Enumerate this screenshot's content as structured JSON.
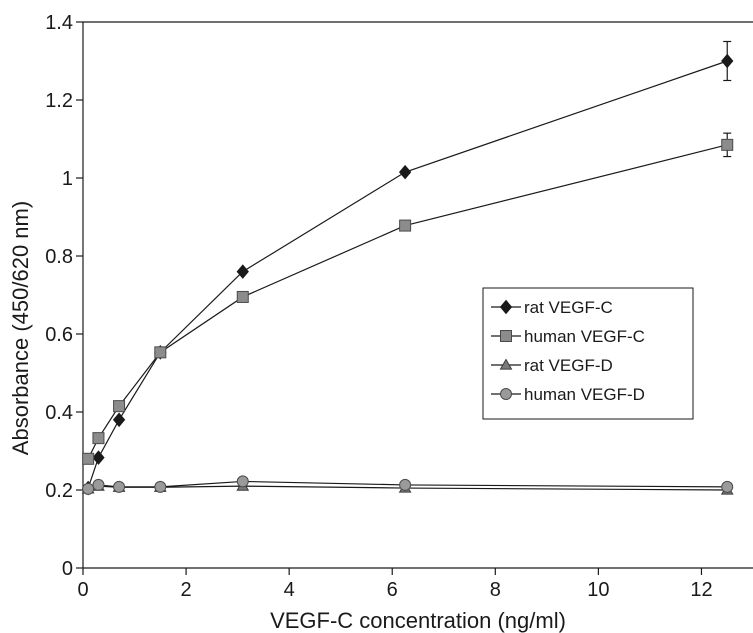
{
  "chart_data": {
    "type": "line",
    "title": "",
    "xlabel": "VEGF-C concentration (ng/ml)",
    "ylabel": "Absorbance (450/620 nm)",
    "xlim": [
      0,
      13
    ],
    "ylim": [
      0,
      1.4
    ],
    "xticks": [
      0,
      2,
      4,
      6,
      8,
      10,
      12
    ],
    "yticks": [
      0,
      0.2,
      0.4,
      0.6,
      0.8,
      1,
      1.2,
      1.4
    ],
    "xtick_labels": [
      "0",
      "2",
      "4",
      "6",
      "8",
      "10",
      "12"
    ],
    "ytick_labels": [
      "0",
      "0.2",
      "0.4",
      "0.6",
      "0.8",
      "1",
      "1.2",
      "1.4"
    ],
    "grid": false,
    "legend_position": "right, middle",
    "x": [
      0.1,
      0.3,
      0.7,
      1.5,
      3.1,
      6.25,
      12.5
    ],
    "series": [
      {
        "name": "rat VEGF-C",
        "marker": "diamond",
        "color": "#1a1a1a",
        "values": [
          0.205,
          0.283,
          0.38,
          0.553,
          0.76,
          1.015,
          1.3
        ],
        "errors": [
          0,
          0,
          0,
          0,
          0,
          0,
          0.05
        ]
      },
      {
        "name": "human VEGF-C",
        "marker": "square",
        "color": "#8c8c8c",
        "values": [
          0.28,
          0.333,
          0.415,
          0.553,
          0.695,
          0.878,
          1.085
        ],
        "errors": [
          0,
          0,
          0,
          0,
          0,
          0,
          0.03
        ]
      },
      {
        "name": "rat VEGF-D",
        "marker": "triangle",
        "color": "#7a7a7a",
        "values": [
          0.203,
          0.21,
          0.207,
          0.207,
          0.21,
          0.205,
          0.2
        ],
        "errors": [
          0,
          0,
          0,
          0,
          0,
          0,
          0
        ]
      },
      {
        "name": "human VEGF-D",
        "marker": "circle",
        "color": "#9a9a9a",
        "values": [
          0.203,
          0.213,
          0.208,
          0.208,
          0.222,
          0.213,
          0.208
        ],
        "errors": [
          0,
          0,
          0,
          0,
          0,
          0,
          0
        ]
      }
    ]
  }
}
